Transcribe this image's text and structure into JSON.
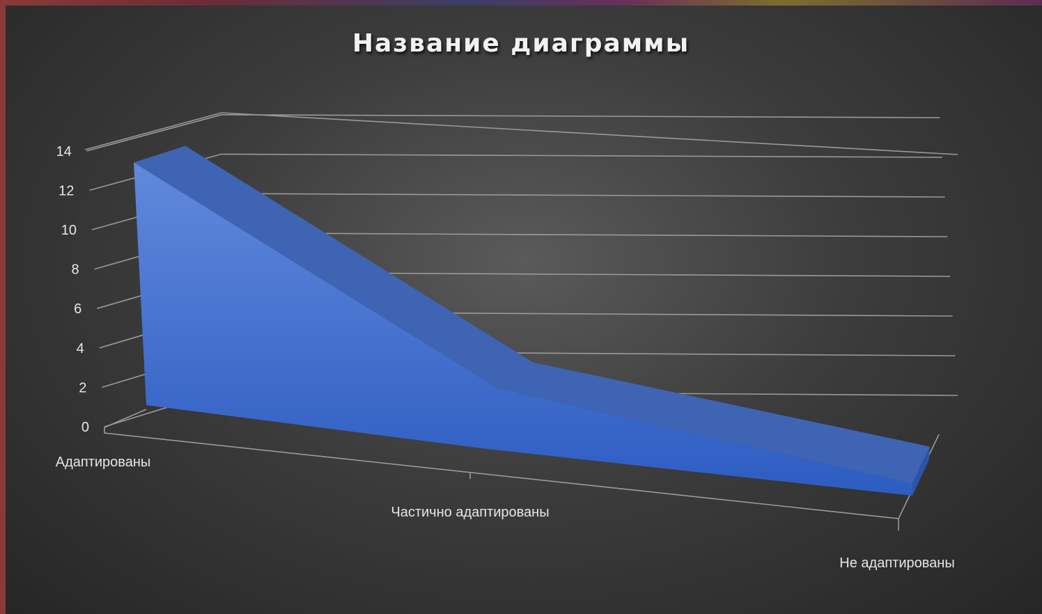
{
  "chart_data": {
    "type": "area",
    "title": "Название диаграммы",
    "categories": [
      "Адаптированы",
      "Частично адаптированы",
      "Не адаптированы"
    ],
    "series": [
      {
        "values": [
          13.2,
          3.8,
          1.0
        ]
      }
    ],
    "y_ticks": [
      "0",
      "2",
      "4",
      "6",
      "8",
      "10",
      "12",
      "14"
    ],
    "ylim": [
      0,
      14
    ],
    "grid": true,
    "style": "3d-area",
    "colors": {
      "front_top": "#5f86da",
      "front_bottom": "#2f5fc3",
      "top_face": "#3f64b4",
      "side_face": "#2b55a8",
      "gridline": "#9a9a9a",
      "background": "#3a3a3a"
    }
  }
}
